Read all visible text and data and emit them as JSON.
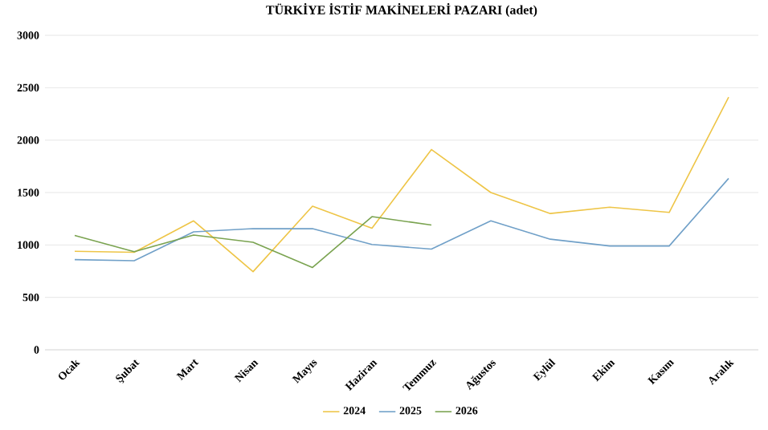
{
  "chart_data": {
    "type": "line",
    "title": "TÜRKİYE İSTİF MAKİNELERİ PAZARI (adet)",
    "categories": [
      "Ocak",
      "Şubat",
      "Mart",
      "Nisan",
      "Mayıs",
      "Haziran",
      "Temmuz",
      "Ağustos",
      "Eylül",
      "Ekim",
      "Kasım",
      "Aralık"
    ],
    "series": [
      {
        "name": "2024",
        "color": "#eec547",
        "values": [
          940,
          930,
          1230,
          745,
          1370,
          1160,
          1910,
          1500,
          1300,
          1360,
          1310,
          2410
        ]
      },
      {
        "name": "2025",
        "color": "#70a0c8",
        "values": [
          860,
          850,
          1125,
          1155,
          1155,
          1005,
          960,
          1230,
          1055,
          990,
          990,
          1635
        ]
      },
      {
        "name": "2026",
        "color": "#7aa350",
        "values": [
          1090,
          935,
          1095,
          1025,
          785,
          1270,
          1190,
          null,
          null,
          null,
          null,
          null
        ]
      }
    ],
    "ylim": [
      0,
      3000
    ],
    "yticks": [
      0,
      500,
      1000,
      1500,
      2000,
      2500,
      3000
    ],
    "grid": "y",
    "legend": "bottom",
    "marker": "none",
    "line_style": "solid"
  }
}
